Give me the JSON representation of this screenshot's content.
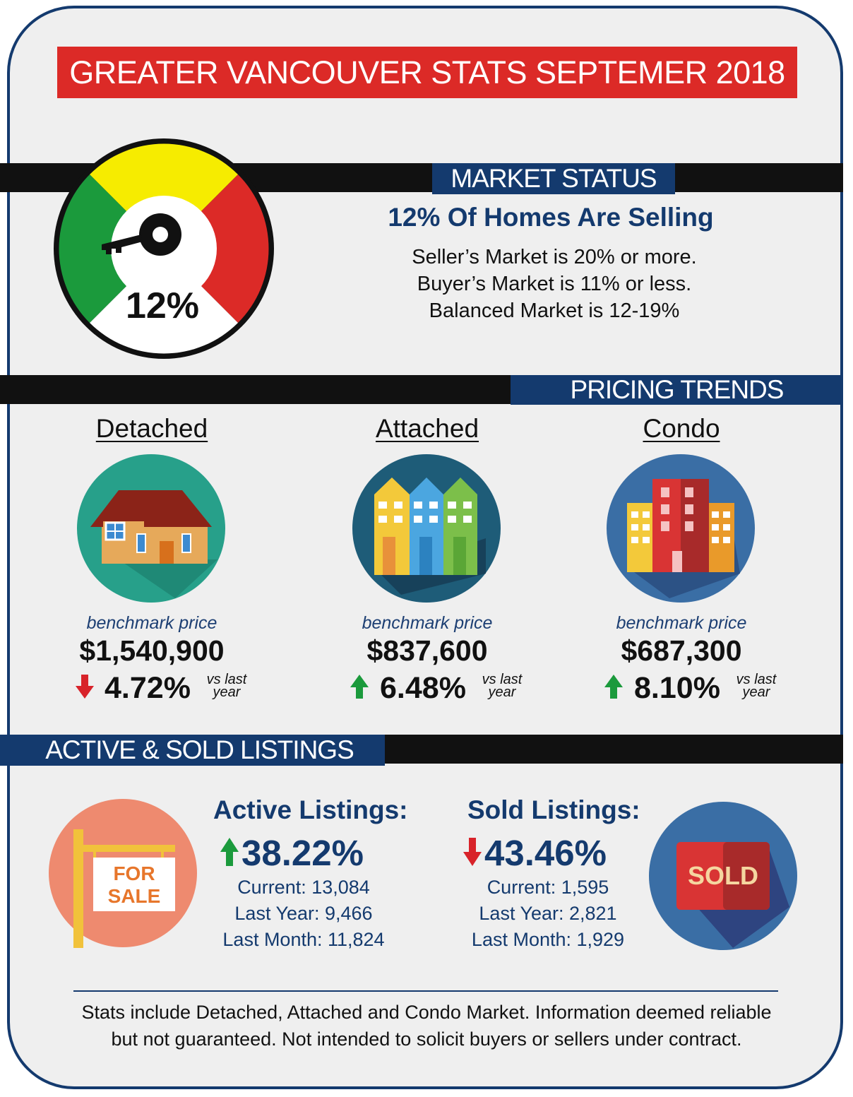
{
  "title": "GREATER VANCOUVER STATS SEPTEMER 2018",
  "market_status": {
    "label": "MARKET STATUS",
    "gauge_value": "12%",
    "headline": "12% Of Homes Are Selling",
    "lines": [
      "Seller’s Market is 20% or more.",
      "Buyer’s Market is 11% or less.",
      "Balanced Market is 12-19%"
    ],
    "colors": {
      "yellow": "#f6ec00",
      "green": "#1b9a3c",
      "red": "#dc2a27"
    }
  },
  "pricing_trends": {
    "label": "PRICING TRENDS",
    "categories": [
      {
        "name": "Detached",
        "benchmark_label": "benchmark price",
        "price": "$1,540,900",
        "change": "4.72%",
        "direction": "down",
        "vs_line1": "vs last",
        "vs_line2": "year"
      },
      {
        "name": "Attached",
        "benchmark_label": "benchmark price",
        "price": "$837,600",
        "change": "6.48%",
        "direction": "up",
        "vs_line1": "vs last",
        "vs_line2": "year"
      },
      {
        "name": "Condo",
        "benchmark_label": "benchmark price",
        "price": "$687,300",
        "change": "8.10%",
        "direction": "up",
        "vs_line1": "vs last",
        "vs_line2": "year"
      }
    ]
  },
  "listings": {
    "label": "ACTIVE & SOLD LISTINGS",
    "active": {
      "heading": "Active Listings:",
      "change": "38.22%",
      "direction": "up",
      "current": "Current: 13,084",
      "last_year": "Last Year: 9,466",
      "last_month": "Last Month: 11,824"
    },
    "sold": {
      "heading": "Sold Listings:",
      "change": "43.46%",
      "direction": "down",
      "current": "Current: 1,595",
      "last_year": "Last Year: 2,821",
      "last_month": "Last Month: 1,929"
    },
    "for_sale_sign": [
      "FOR",
      "SALE"
    ],
    "sold_sign": "SOLD"
  },
  "footer": {
    "line1": "Stats include Detached, Attached and Condo Market. Information deemed reliable",
    "line2": "but not guaranteed. Not intended to solicit buyers or sellers under contract."
  }
}
